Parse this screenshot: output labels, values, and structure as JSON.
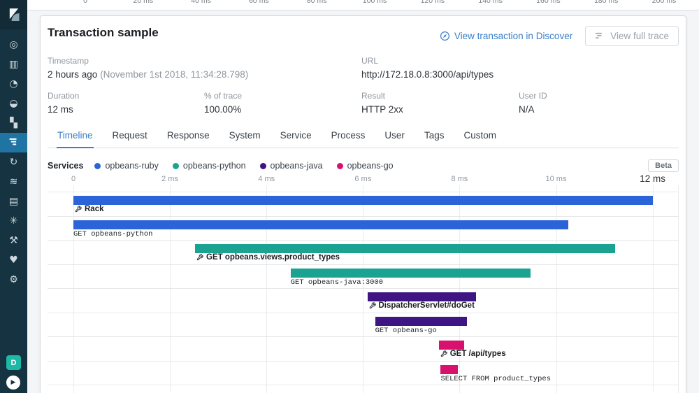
{
  "backdrop_axis": {
    "ticks": [
      "0",
      "20 ms",
      "40 ms",
      "60 ms",
      "80 ms",
      "100 ms",
      "120 ms",
      "140 ms",
      "160 ms",
      "180 ms",
      "200 ms"
    ]
  },
  "sidebar": {
    "items": [
      {
        "name": "discover",
        "selected": false
      },
      {
        "name": "visualize",
        "selected": false
      },
      {
        "name": "dashboard",
        "selected": false
      },
      {
        "name": "canvas",
        "selected": false
      },
      {
        "name": "maps",
        "selected": false
      },
      {
        "name": "apm",
        "selected": true
      },
      {
        "name": "uptime",
        "selected": false
      },
      {
        "name": "logs",
        "selected": false
      },
      {
        "name": "infrastructure",
        "selected": false
      },
      {
        "name": "graph",
        "selected": false
      },
      {
        "name": "devtools",
        "selected": false
      },
      {
        "name": "monitoring",
        "selected": false
      },
      {
        "name": "management",
        "selected": false
      }
    ],
    "space_badge": "D"
  },
  "header": {
    "title": "Transaction sample",
    "discover_link": "View transaction in Discover",
    "full_trace_button": "View full trace"
  },
  "metadata": {
    "timestamp": {
      "label": "Timestamp",
      "value": "2 hours ago",
      "value_note": "(November 1st 2018, 11:34:28.798)"
    },
    "url": {
      "label": "URL",
      "value": "http://172.18.0.8:3000/api/types"
    },
    "duration": {
      "label": "Duration",
      "value": "12 ms"
    },
    "pct_of_trace": {
      "label": "% of trace",
      "value": "100.00%"
    },
    "result": {
      "label": "Result",
      "value": "HTTP 2xx"
    },
    "user_id": {
      "label": "User ID",
      "value": "N/A"
    }
  },
  "tabs": [
    {
      "label": "Timeline",
      "active": true
    },
    {
      "label": "Request",
      "active": false
    },
    {
      "label": "Response",
      "active": false
    },
    {
      "label": "System",
      "active": false
    },
    {
      "label": "Service",
      "active": false
    },
    {
      "label": "Process",
      "active": false
    },
    {
      "label": "User",
      "active": false
    },
    {
      "label": "Tags",
      "active": false
    },
    {
      "label": "Custom",
      "active": false
    }
  ],
  "timeline_section": {
    "services_label": "Services",
    "beta_badge": "Beta"
  },
  "chart_data": {
    "type": "bar",
    "orientation": "horizontal-waterfall",
    "x_unit": "ms",
    "xlim": [
      0,
      12.55
    ],
    "grid": true,
    "legend_position": "top-left",
    "x_ticks": [
      {
        "label": "0",
        "ms": 0
      },
      {
        "label": "2 ms",
        "ms": 2
      },
      {
        "label": "4 ms",
        "ms": 4
      },
      {
        "label": "6 ms",
        "ms": 6
      },
      {
        "label": "8 ms",
        "ms": 8
      },
      {
        "label": "10 ms",
        "ms": 10
      },
      {
        "label": "12 ms",
        "ms": 12
      }
    ],
    "legend": [
      {
        "name": "opbeans-ruby",
        "color": "#2b63d9"
      },
      {
        "name": "opbeans-python",
        "color": "#1ba392"
      },
      {
        "name": "opbeans-java",
        "color": "#3e1582"
      },
      {
        "name": "opbeans-go",
        "color": "#d9116e"
      }
    ],
    "items": [
      {
        "label": "Rack",
        "service": "opbeans-ruby",
        "color": "#2b63d9",
        "start_ms": 0,
        "end_ms": 12.0,
        "label_style": "bold"
      },
      {
        "label": "GET opbeans-python",
        "service": "opbeans-ruby",
        "color": "#2b63d9",
        "start_ms": 0,
        "end_ms": 10.25,
        "label_style": "mono"
      },
      {
        "label": "GET opbeans.views.product_types",
        "service": "opbeans-python",
        "color": "#1ba392",
        "start_ms": 2.52,
        "end_ms": 11.22,
        "label_style": "bold"
      },
      {
        "label": "GET opbeans-java:3000",
        "service": "opbeans-python",
        "color": "#1ba392",
        "start_ms": 4.5,
        "end_ms": 9.47,
        "label_style": "mono"
      },
      {
        "label": "DispatcherServlet#doGet",
        "service": "opbeans-java",
        "color": "#3e1582",
        "start_ms": 6.09,
        "end_ms": 8.34,
        "label_style": "bold"
      },
      {
        "label": "GET opbeans-go",
        "service": "opbeans-java",
        "color": "#3e1582",
        "start_ms": 6.25,
        "end_ms": 8.15,
        "label_style": "mono"
      },
      {
        "label": "GET /api/types",
        "service": "opbeans-go",
        "color": "#d9116e",
        "start_ms": 7.57,
        "end_ms": 8.09,
        "label_style": "bold"
      },
      {
        "label": "SELECT FROM product_types",
        "service": "opbeans-go",
        "color": "#d9116e",
        "start_ms": 7.61,
        "end_ms": 7.96,
        "label_style": "mono"
      }
    ]
  },
  "colors": {
    "link_blue": "#3a7ec6",
    "sidebar_bg": "#153340",
    "sidebar_selected": "#2074a4",
    "space_badge_teal": "#1eb8a6"
  }
}
